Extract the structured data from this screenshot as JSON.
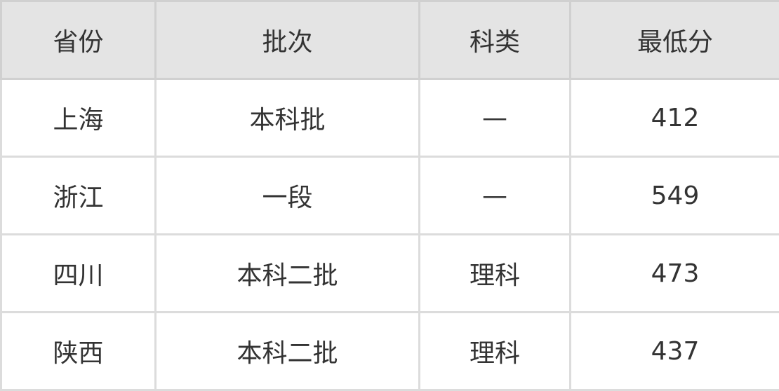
{
  "headers": [
    "省份",
    "批次",
    "科类",
    "最低分"
  ],
  "rows": [
    [
      "上海",
      "本科批",
      "—",
      "412"
    ],
    [
      "浙江",
      "一段",
      "—",
      "549"
    ],
    [
      "四川",
      "本科二批",
      "理科",
      "473"
    ],
    [
      "陕西",
      "本科二批",
      "理科",
      "437"
    ]
  ]
}
